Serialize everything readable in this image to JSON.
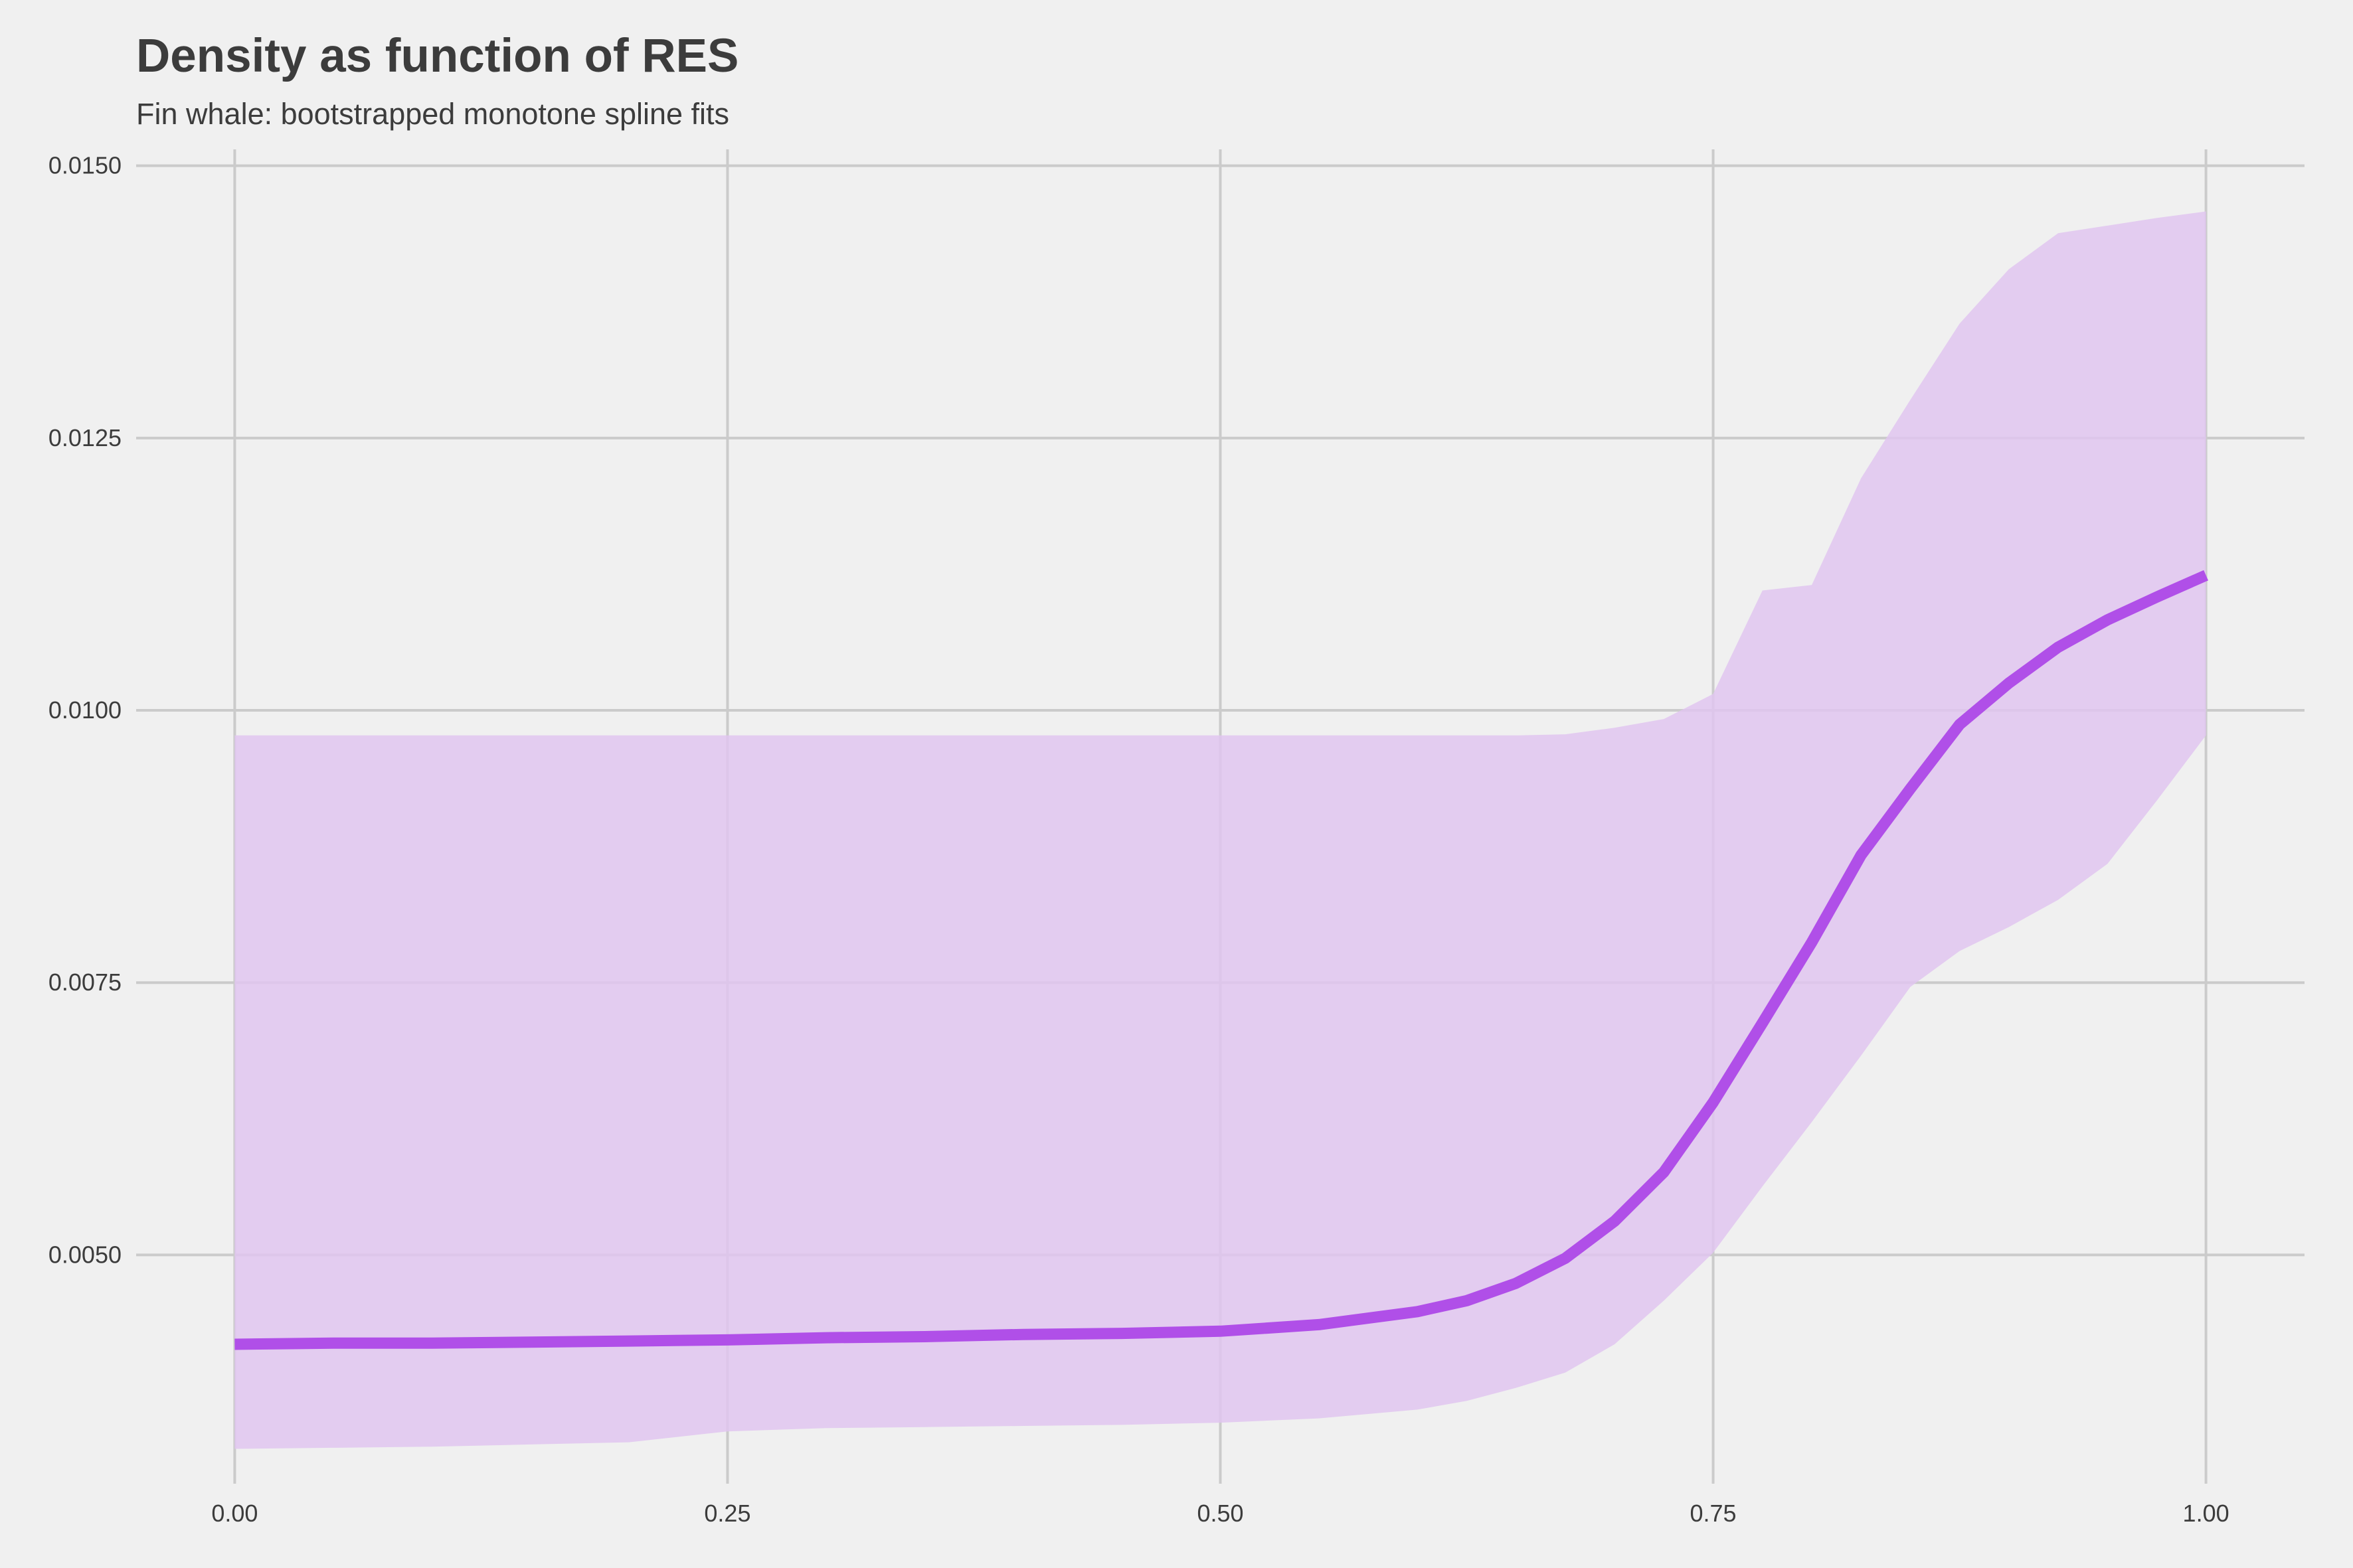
{
  "chart_data": {
    "type": "line",
    "title": "Density as function of RES",
    "subtitle": "Fin whale: bootstrapped monotone spline fits",
    "xlabel": "",
    "ylabel": "",
    "xlim": [
      -0.05,
      1.05
    ],
    "ylim": [
      0.0029,
      0.01515
    ],
    "x_ticks": [
      0,
      0.25,
      0.5,
      0.75,
      1
    ],
    "x_tick_labels": [
      "0.00",
      "0.25",
      "0.50",
      "0.75",
      "1.00"
    ],
    "y_ticks": [
      0.005,
      0.0075,
      0.01,
      0.0125,
      0.015
    ],
    "y_tick_labels": [
      "0.0050",
      "0.0075",
      "0.0100",
      "0.0125",
      "0.0150"
    ],
    "grid": true,
    "legend": "none",
    "colors": {
      "line": "#b04fe8",
      "band": "#e1c5f0",
      "grid": "#cbcbcb",
      "background": "#f0f0f0"
    },
    "series": [
      {
        "x": [
          0,
          0.05,
          0.1,
          0.15,
          0.2,
          0.25,
          0.3,
          0.35,
          0.4,
          0.45,
          0.5,
          0.55,
          0.6,
          0.625,
          0.65,
          0.675,
          0.7,
          0.725,
          0.75,
          0.775,
          0.8,
          0.825,
          0.85,
          0.875,
          0.9,
          0.925,
          0.95,
          0.975,
          1
        ],
        "values": [
          0.00418,
          0.00419,
          0.00419,
          0.0042,
          0.00421,
          0.00422,
          0.00424,
          0.00425,
          0.00427,
          0.00428,
          0.0043,
          0.00436,
          0.00448,
          0.00458,
          0.00474,
          0.00497,
          0.00531,
          0.00576,
          0.0064,
          0.00713,
          0.00787,
          0.00867,
          0.00928,
          0.00987,
          0.01025,
          0.01058,
          0.01083,
          0.01104,
          0.01124
        ],
        "lower": [
          0.00322,
          0.00323,
          0.00324,
          0.00326,
          0.00328,
          0.00338,
          0.00341,
          0.00342,
          0.00343,
          0.00344,
          0.00346,
          0.0035,
          0.00358,
          0.00366,
          0.00378,
          0.00392,
          0.00418,
          0.00458,
          0.00502,
          0.00563,
          0.00622,
          0.00683,
          0.00746,
          0.00779,
          0.00801,
          0.00826,
          0.00859,
          0.00917,
          0.00977
        ],
        "upper": [
          0.00977,
          0.00977,
          0.00977,
          0.00977,
          0.00977,
          0.00977,
          0.00977,
          0.00977,
          0.00977,
          0.00977,
          0.00977,
          0.00977,
          0.00977,
          0.00977,
          0.00977,
          0.00978,
          0.00984,
          0.00992,
          0.01015,
          0.0111,
          0.01115,
          0.01213,
          0.01285,
          0.01355,
          0.01405,
          0.01438,
          0.01445,
          0.01452,
          0.01458
        ]
      }
    ]
  }
}
